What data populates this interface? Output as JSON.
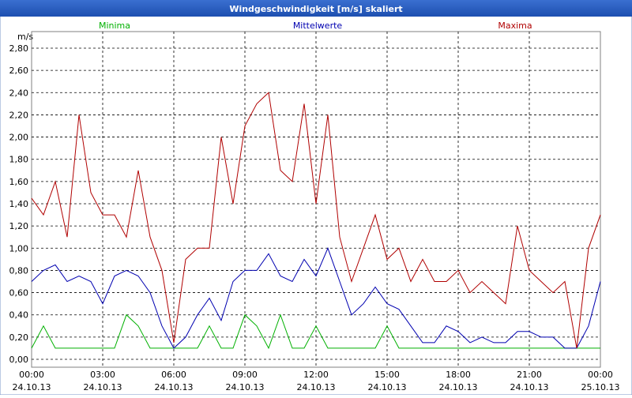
{
  "chart_data": {
    "type": "line",
    "title": "Windgeschwindigkeit [m/s] skaliert",
    "ylabel": "m/s",
    "x": [
      0,
      0.5,
      1,
      1.5,
      2,
      2.5,
      3,
      3.5,
      4,
      4.5,
      5,
      5.5,
      6,
      6.5,
      7,
      7.5,
      8,
      8.5,
      9,
      9.5,
      10,
      10.5,
      11,
      11.5,
      12,
      12.5,
      13,
      13.5,
      14,
      14.5,
      15,
      15.5,
      16,
      16.5,
      17,
      17.5,
      18,
      18.5,
      19,
      19.5,
      20,
      20.5,
      21,
      21.5,
      22,
      22.5,
      23,
      23.5,
      24
    ],
    "xlim": [
      0,
      24
    ],
    "xticks": [
      {
        "value": 0,
        "label": "00:00",
        "date": "24.10.13"
      },
      {
        "value": 3,
        "label": "03:00",
        "date": "24.10.13"
      },
      {
        "value": 6,
        "label": "06:00",
        "date": "24.10.13"
      },
      {
        "value": 9,
        "label": "09:00",
        "date": "24.10.13"
      },
      {
        "value": 12,
        "label": "12:00",
        "date": "24.10.13"
      },
      {
        "value": 15,
        "label": "15:00",
        "date": "24.10.13"
      },
      {
        "value": 18,
        "label": "18:00",
        "date": "24.10.13"
      },
      {
        "value": 21,
        "label": "21:00",
        "date": "24.10.13"
      },
      {
        "value": 24,
        "label": "00:00",
        "date": "25.10.13"
      }
    ],
    "ylim": [
      0,
      2.8
    ],
    "yticks": [
      {
        "value": 0,
        "label": "0,00"
      },
      {
        "value": 0.2,
        "label": "0,20"
      },
      {
        "value": 0.4,
        "label": "0,40"
      },
      {
        "value": 0.6,
        "label": "0,60"
      },
      {
        "value": 0.8,
        "label": "0,80"
      },
      {
        "value": 1.0,
        "label": "1,00"
      },
      {
        "value": 1.2,
        "label": "1,20"
      },
      {
        "value": 1.4,
        "label": "1,40"
      },
      {
        "value": 1.6,
        "label": "1,60"
      },
      {
        "value": 1.8,
        "label": "1,80"
      },
      {
        "value": 2.0,
        "label": "2,00"
      },
      {
        "value": 2.2,
        "label": "2,20"
      },
      {
        "value": 2.4,
        "label": "2,40"
      },
      {
        "value": 2.6,
        "label": "2,60"
      },
      {
        "value": 2.8,
        "label": "2,80"
      }
    ],
    "grid": true,
    "series": [
      {
        "name": "Minima",
        "color": "#00b000",
        "values": [
          0.1,
          0.3,
          0.1,
          0.1,
          0.1,
          0.1,
          0.1,
          0.1,
          0.4,
          0.3,
          0.1,
          0.1,
          0.1,
          0.1,
          0.1,
          0.3,
          0.1,
          0.1,
          0.4,
          0.3,
          0.1,
          0.4,
          0.1,
          0.1,
          0.3,
          0.1,
          0.1,
          0.1,
          0.1,
          0.1,
          0.3,
          0.1,
          0.1,
          0.1,
          0.1,
          0.1,
          0.1,
          0.1,
          0.1,
          0.1,
          0.1,
          0.1,
          0.1,
          0.1,
          0.1,
          0.1,
          0.1,
          0.1,
          0.1
        ]
      },
      {
        "name": "Mittelwerte",
        "color": "#0000b0",
        "values": [
          0.7,
          0.8,
          0.85,
          0.7,
          0.75,
          0.7,
          0.5,
          0.75,
          0.8,
          0.75,
          0.6,
          0.3,
          0.1,
          0.2,
          0.4,
          0.55,
          0.35,
          0.7,
          0.8,
          0.8,
          0.95,
          0.75,
          0.7,
          0.9,
          0.75,
          1.0,
          0.7,
          0.4,
          0.5,
          0.65,
          0.5,
          0.45,
          0.3,
          0.15,
          0.15,
          0.3,
          0.25,
          0.15,
          0.2,
          0.15,
          0.15,
          0.25,
          0.25,
          0.2,
          0.2,
          0.1,
          0.1,
          0.3,
          0.7
        ]
      },
      {
        "name": "Maxima",
        "color": "#b00000",
        "values": [
          1.45,
          1.3,
          1.6,
          1.1,
          2.2,
          1.5,
          1.3,
          1.3,
          1.1,
          1.7,
          1.1,
          0.8,
          0.15,
          0.9,
          1.0,
          1.0,
          2.0,
          1.4,
          2.1,
          2.3,
          2.4,
          1.7,
          1.6,
          2.3,
          1.4,
          2.2,
          1.1,
          0.7,
          1.0,
          1.3,
          0.9,
          1.0,
          0.7,
          0.9,
          0.7,
          0.7,
          0.8,
          0.6,
          0.7,
          0.6,
          0.5,
          1.2,
          0.8,
          0.7,
          0.6,
          0.7,
          0.1,
          1.0,
          1.3
        ]
      }
    ]
  }
}
